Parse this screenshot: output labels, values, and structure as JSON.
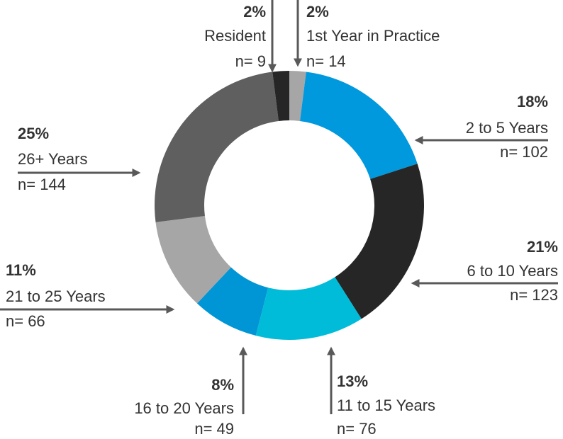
{
  "chart_data": {
    "type": "donut",
    "categories": [
      "1st Year in Practice",
      "2 to 5 Years",
      "6 to 10 Years",
      "11 to 15 Years",
      "16 to 20 Years",
      "21 to 25 Years",
      "26+ Years",
      "Resident"
    ],
    "values": [
      2,
      18,
      21,
      13,
      8,
      11,
      25,
      2
    ],
    "value_labels": [
      "2%",
      "18%",
      "21%",
      "13%",
      "8%",
      "11%",
      "25%",
      "2%"
    ],
    "count_labels": [
      "n= 14",
      "n= 102",
      "n= 123",
      "n= 76",
      "n= 49",
      "n= 66",
      "n= 144",
      "n= 9"
    ],
    "colors": [
      "#a6a6a6",
      "#0099dd",
      "#262626",
      "#00bcd8",
      "#0096d6",
      "#a6a6a6",
      "#5f5f5f",
      "#262626"
    ]
  }
}
